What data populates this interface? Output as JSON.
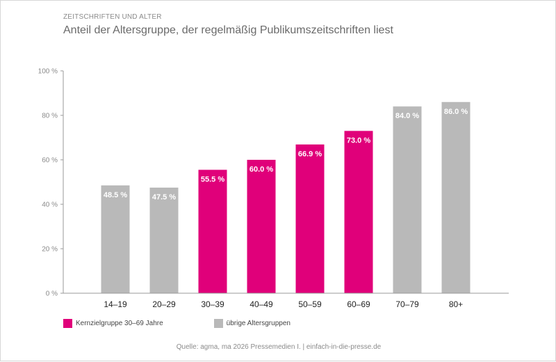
{
  "header": {
    "eyebrow": "ZEITSCHRIFTEN UND ALTER",
    "title": "Anteil der Altersgruppe, der regelmäßig Publikumszeitschriften liest"
  },
  "legend": {
    "core_label": "Kernzielgruppe 30–69 Jahre",
    "other_label": "übrige Altersgruppen"
  },
  "footer": {
    "source": "Quelle: agma, ma 2026 Pressemedien I. | einfach-in-die-presse.de"
  },
  "colors": {
    "core": "#e0007a",
    "other": "#b9b9b9",
    "axis": "#9a9a9a",
    "tick_text": "#8a8a8a",
    "category_text": "#222222",
    "value_text": "#ffffff"
  },
  "chart_data": {
    "type": "bar",
    "categories": [
      "14–19",
      "20–29",
      "30–39",
      "40–49",
      "50–59",
      "60–69",
      "70–79",
      "80+"
    ],
    "values": [
      48.5,
      47.5,
      55.5,
      60.0,
      66.9,
      73.0,
      84.0,
      86.0
    ],
    "value_labels": [
      "48.5 %",
      "47.5 %",
      "55.5 %",
      "60.0 %",
      "66.9 %",
      "73.0 %",
      "84.0 %",
      "86.0 %"
    ],
    "groups": [
      "other",
      "other",
      "core",
      "core",
      "core",
      "core",
      "other",
      "other"
    ],
    "ylim": [
      0,
      100
    ],
    "yticks": [
      0,
      20,
      40,
      60,
      80,
      100
    ],
    "ytick_labels": [
      "0 %",
      "20 %",
      "40 %",
      "60 %",
      "80 %",
      "100 %"
    ],
    "grid": false,
    "legend_position": "bottom-left",
    "xlabel": "",
    "ylabel": ""
  }
}
